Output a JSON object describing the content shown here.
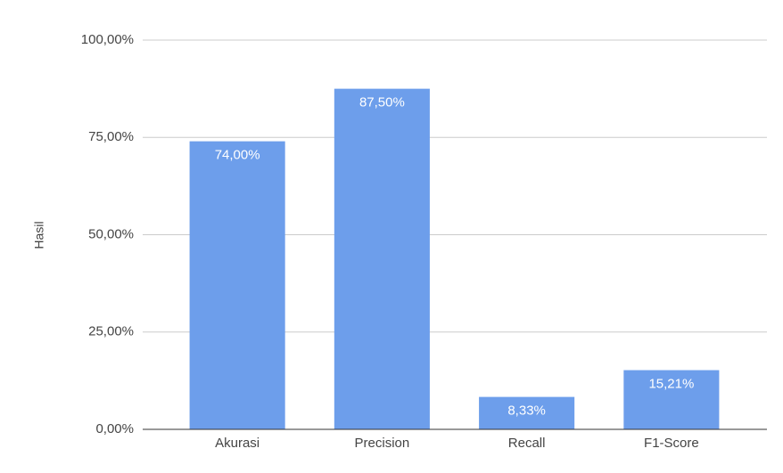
{
  "chart_data": {
    "type": "bar",
    "y_label": "Hasil",
    "categories": [
      "Akurasi",
      "Precision",
      "Recall",
      "F1-Score"
    ],
    "values": [
      74,
      87.5,
      8.33,
      15.21
    ],
    "value_labels": [
      "74,00%",
      "87,50%",
      "8,33%",
      "15,21%"
    ],
    "color": "#6d9eeb",
    "ylim": [
      0,
      100
    ],
    "yticks": [
      {
        "value": 0,
        "label": "0,00%"
      },
      {
        "value": 25,
        "label": "25,00%"
      },
      {
        "value": 50,
        "label": "50,00%"
      },
      {
        "value": 75,
        "label": "75,00%"
      },
      {
        "value": 100,
        "label": "100,00%"
      }
    ],
    "grid": true
  }
}
